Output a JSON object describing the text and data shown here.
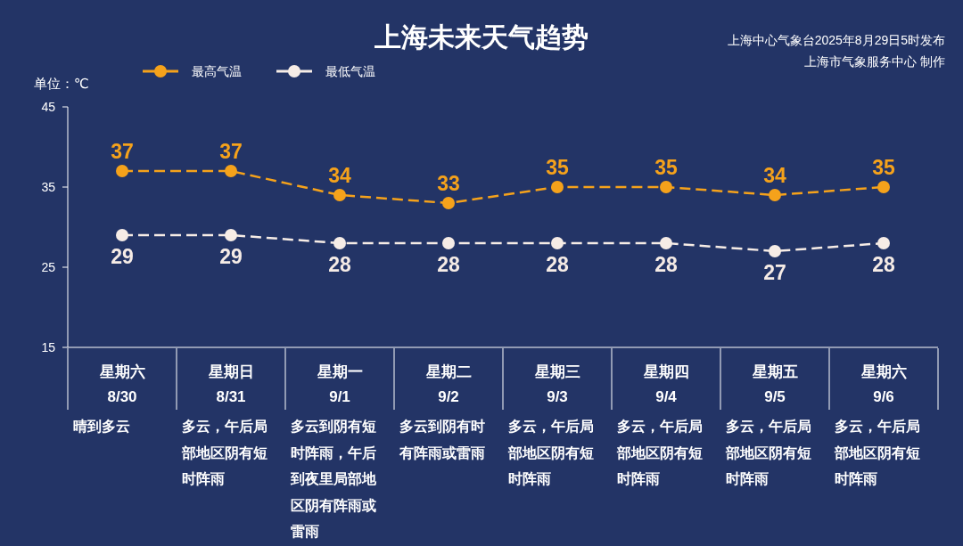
{
  "chart_data": {
    "type": "line",
    "title": "上海未来天气趋势",
    "ylabel": "单位：℃",
    "categories": [
      "星期六 8/30",
      "星期日 8/31",
      "星期一 9/1",
      "星期二 9/2",
      "星期三 9/3",
      "星期四 9/4",
      "星期五 9/5",
      "星期六 9/6"
    ],
    "series": [
      {
        "name": "最高气温",
        "color": "#f5a21b",
        "values": [
          37,
          37,
          34,
          33,
          35,
          35,
          34,
          35
        ]
      },
      {
        "name": "最低气温",
        "color": "#f6ece6",
        "values": [
          29,
          29,
          28,
          28,
          28,
          28,
          27,
          28
        ]
      }
    ],
    "ylim": [
      15,
      45
    ],
    "yticks": [
      15,
      25,
      35,
      45
    ],
    "grid": false,
    "legend": "top left",
    "marker": "circle",
    "line_style": "dashed",
    "data_labels": true,
    "annotations": [
      "上海中心气象台2025年8月29日5时发布",
      "上海市气象服务中心 制作",
      "晴到多云",
      "多云，午后局部地区阴有短时阵雨",
      "多云到阴有短时阵雨，午后到夜里局部地区阴有阵雨或雷雨",
      "多云到阴有时有阵雨或雷雨",
      "多云，午后局部地区阴有短时阵雨",
      "多云，午后局部地区阴有短时阵雨",
      "多云，午后局部地区阴有短时阵雨",
      "多云，午后局部地区阴有短时阵雨"
    ]
  }
}
